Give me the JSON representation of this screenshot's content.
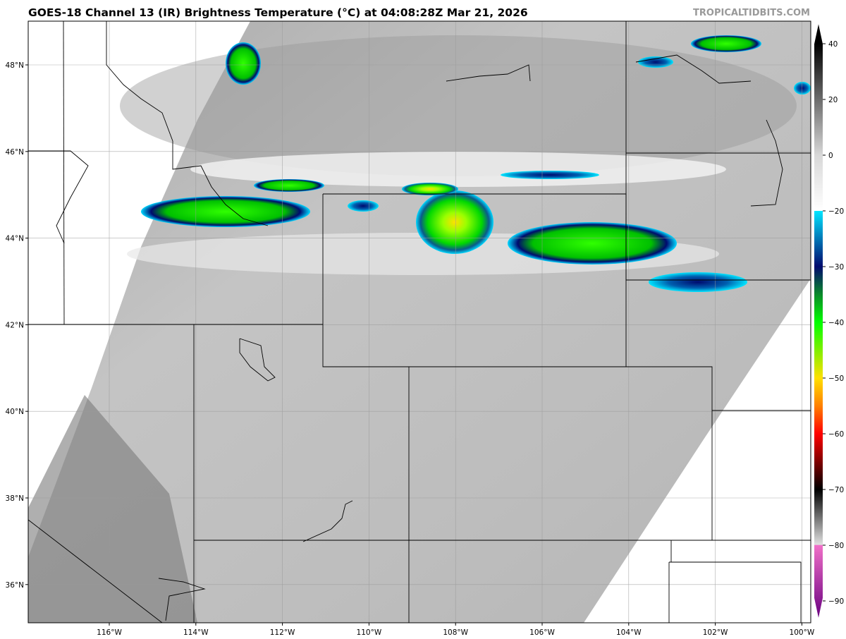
{
  "title": "GOES-18 Channel 13 (IR) Brightness Temperature (°C) at 04:08:28Z Mar 21, 2026",
  "credit": "TROPICALTIDBITS.COM",
  "map": {
    "latitudes": [
      {
        "value": 48,
        "label": "48°N"
      },
      {
        "value": 46,
        "label": "46°N"
      },
      {
        "value": 44,
        "label": "44°N"
      },
      {
        "value": 42,
        "label": "42°N"
      },
      {
        "value": 40,
        "label": "40°N"
      },
      {
        "value": 38,
        "label": "38°N"
      },
      {
        "value": 36,
        "label": "36°N"
      }
    ],
    "longitudes": [
      {
        "value": -116,
        "label": "116°W"
      },
      {
        "value": -114,
        "label": "114°W"
      },
      {
        "value": -112,
        "label": "112°W"
      },
      {
        "value": -110,
        "label": "110°W"
      },
      {
        "value": -108,
        "label": "108°W"
      },
      {
        "value": -106,
        "label": "106°W"
      },
      {
        "value": -104,
        "label": "104°W"
      },
      {
        "value": -102,
        "label": "102°W"
      },
      {
        "value": -100,
        "label": "100°W"
      }
    ]
  },
  "colorbar": {
    "ticks": [
      40,
      20,
      0,
      -20,
      -30,
      -40,
      -50,
      -60,
      -70,
      -80,
      -90
    ],
    "range": [
      -93,
      47
    ],
    "stops": [
      {
        "value": 40,
        "color": "#000000"
      },
      {
        "value": 0,
        "color": "#d8d8d8"
      },
      {
        "value": -20,
        "color": "#ffffff"
      },
      {
        "value": -20.01,
        "color": "#00e5ff"
      },
      {
        "value": -30,
        "color": "#000a6e"
      },
      {
        "value": -35,
        "color": "#0a8a2a"
      },
      {
        "value": -40,
        "color": "#00ff00"
      },
      {
        "value": -50,
        "color": "#ffe000"
      },
      {
        "value": -55,
        "color": "#ff8000"
      },
      {
        "value": -60,
        "color": "#ff0000"
      },
      {
        "value": -70,
        "color": "#000000"
      },
      {
        "value": -79.9,
        "color": "#e0e0e0"
      },
      {
        "value": -80,
        "color": "#f070c8"
      },
      {
        "value": -93,
        "color": "#6a0080"
      }
    ]
  }
}
